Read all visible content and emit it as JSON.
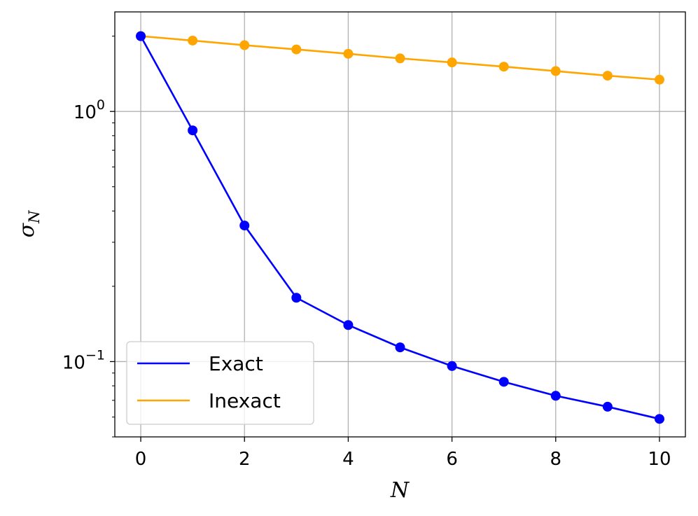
{
  "chart_data": {
    "type": "line",
    "title": "",
    "xlabel": "N",
    "ylabel": "σ",
    "ylabel_sub": "N",
    "x": [
      0,
      1,
      2,
      3,
      4,
      5,
      6,
      7,
      8,
      9,
      10
    ],
    "xlim": [
      -0.5,
      10.5
    ],
    "ylim": [
      0.05,
      2.5
    ],
    "yscale": "log",
    "grid": true,
    "legend_position": "lower-left",
    "x_ticks": [
      "0",
      "2",
      "4",
      "6",
      "8",
      "10"
    ],
    "y_ticks": [
      {
        "value": 1,
        "base": "10",
        "exp": "0"
      },
      {
        "value": 0.1,
        "base": "10",
        "exp": "−1"
      }
    ],
    "series": [
      {
        "name": "Exact",
        "color": "#0000ff",
        "values": [
          2.0,
          0.84,
          0.35,
          0.18,
          0.14,
          0.114,
          0.096,
          0.083,
          0.073,
          0.066,
          0.059
        ]
      },
      {
        "name": "Inexact",
        "color": "#ffa500",
        "values": [
          2.0,
          1.92,
          1.84,
          1.77,
          1.7,
          1.63,
          1.57,
          1.51,
          1.45,
          1.39,
          1.34
        ]
      }
    ]
  }
}
